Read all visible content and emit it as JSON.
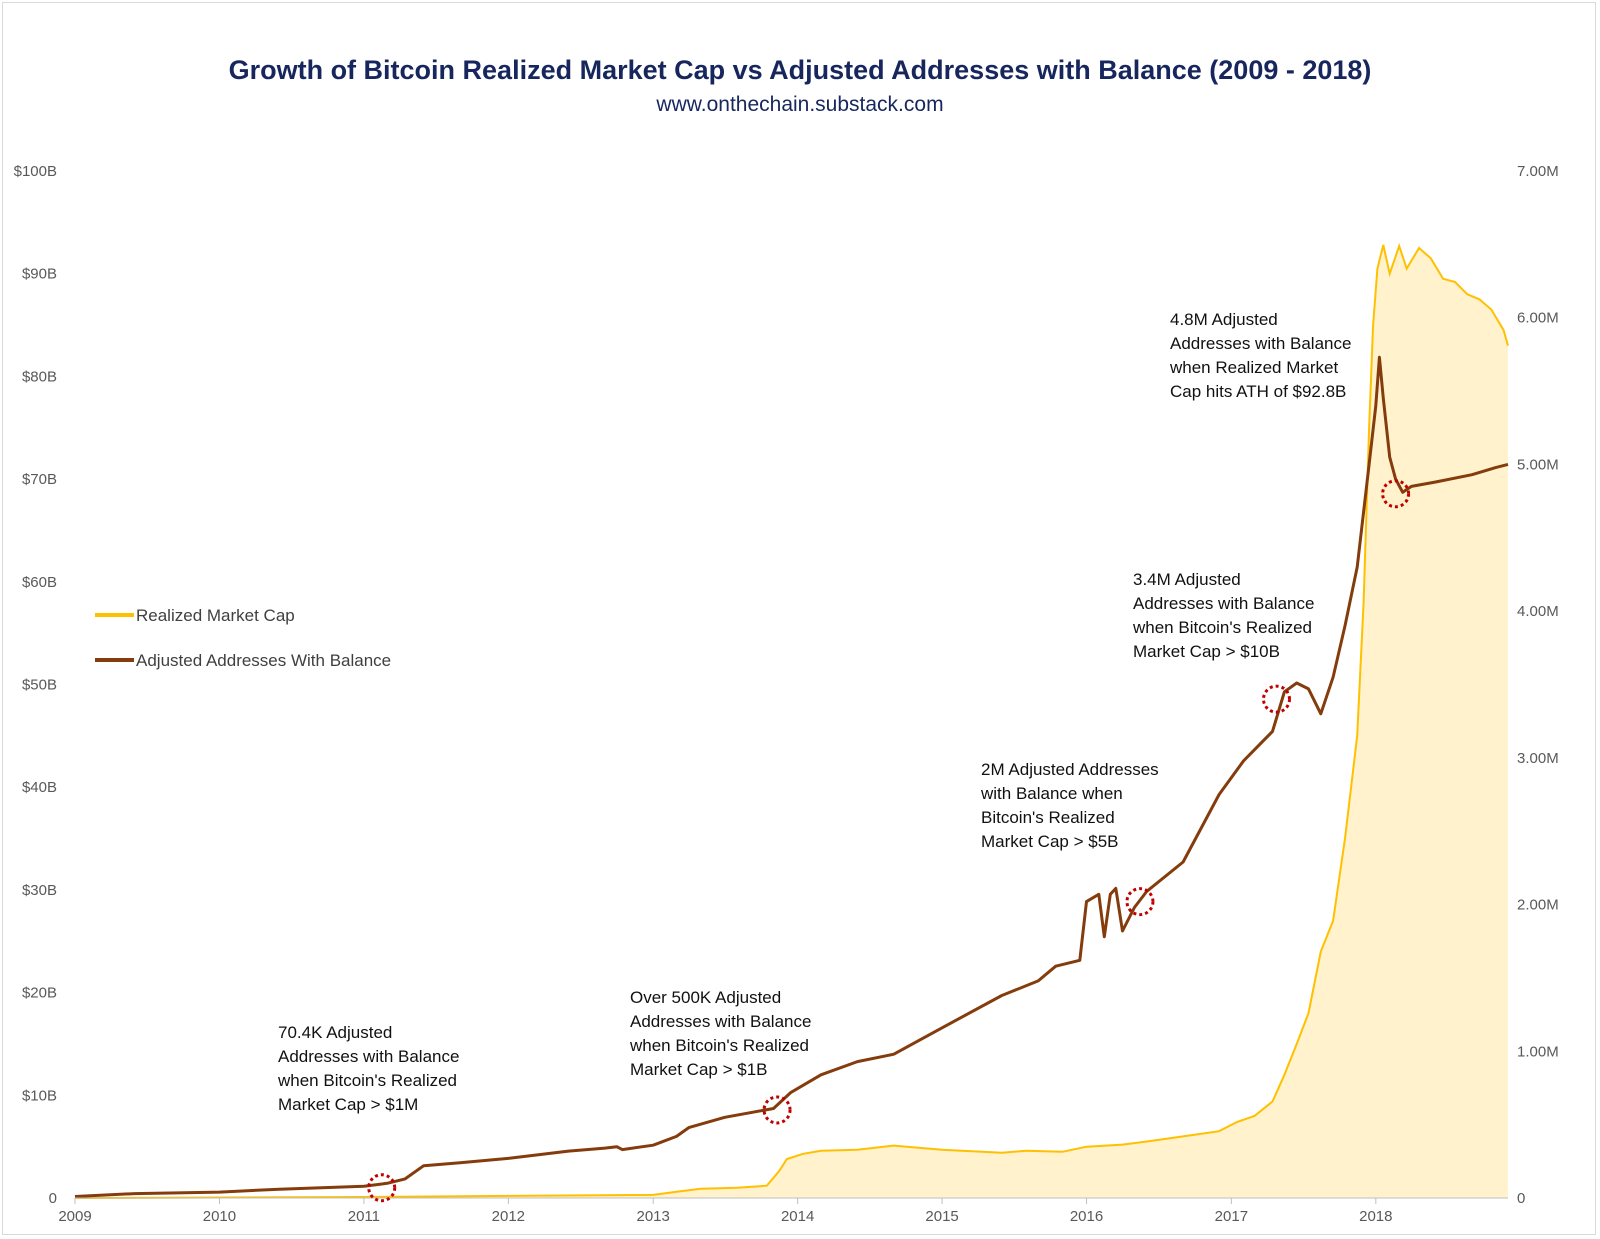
{
  "header": {
    "title": "Growth of Bitcoin Realized Market Cap vs Adjusted Addresses with Balance (2009 - 2018)",
    "subtitle": "www.onthechain.substack.com"
  },
  "colors": {
    "market_cap_line": "#ffc000",
    "market_cap_fill": "#fff2cc",
    "addresses_line": "#843c0c",
    "marker": "#c00000",
    "title": "#17275e"
  },
  "chart_data": {
    "type": "area",
    "xlim": [
      "2009-01-01",
      "2018-12-01"
    ],
    "y_left": {
      "range": [
        0,
        100
      ],
      "unit": "billion USD",
      "ticks": [
        "0",
        "$10B",
        "$20B",
        "$30B",
        "$40B",
        "$50B",
        "$60B",
        "$70B",
        "$80B",
        "$90B",
        "$100B"
      ]
    },
    "y_right": {
      "range": [
        0,
        7
      ],
      "unit": "million addresses",
      "ticks": [
        "0",
        "1.00M",
        "2.00M",
        "3.00M",
        "4.00M",
        "5.00M",
        "6.00M",
        "7.00M"
      ]
    },
    "x_ticks": [
      "2009",
      "2010",
      "2011",
      "2012",
      "2013",
      "2014",
      "2015",
      "2016",
      "2017",
      "2018"
    ],
    "legend": {
      "placement": "left-middle",
      "entries": [
        "Realized Market Cap",
        "Adjusted Addresses With Balance"
      ]
    },
    "grid": false,
    "series": [
      {
        "name": "Realized Market Cap",
        "axis": "left",
        "style": "area",
        "points": [
          [
            "2009-01-01",
            0
          ],
          [
            "2010-01-01",
            0.05
          ],
          [
            "2011-01-01",
            0.1
          ],
          [
            "2012-01-01",
            0.2
          ],
          [
            "2013-01-01",
            0.3
          ],
          [
            "2013-03-01",
            0.6
          ],
          [
            "2013-05-01",
            0.9
          ],
          [
            "2013-08-01",
            1.0
          ],
          [
            "2013-10-15",
            1.2
          ],
          [
            "2013-11-15",
            2.6
          ],
          [
            "2013-12-05",
            3.8
          ],
          [
            "2014-01-15",
            4.3
          ],
          [
            "2014-03-01",
            4.6
          ],
          [
            "2014-06-01",
            4.7
          ],
          [
            "2014-09-01",
            5.1
          ],
          [
            "2015-01-01",
            4.7
          ],
          [
            "2015-06-01",
            4.4
          ],
          [
            "2015-08-01",
            4.6
          ],
          [
            "2015-11-01",
            4.5
          ],
          [
            "2016-01-01",
            5.0
          ],
          [
            "2016-04-01",
            5.2
          ],
          [
            "2016-06-01",
            5.5
          ],
          [
            "2016-09-01",
            6.0
          ],
          [
            "2016-12-01",
            6.5
          ],
          [
            "2017-01-15",
            7.4
          ],
          [
            "2017-03-01",
            8.0
          ],
          [
            "2017-04-15",
            9.4
          ],
          [
            "2017-05-15",
            12.0
          ],
          [
            "2017-06-15",
            15.0
          ],
          [
            "2017-07-15",
            18.0
          ],
          [
            "2017-08-15",
            24.0
          ],
          [
            "2017-09-15",
            27.0
          ],
          [
            "2017-10-15",
            35.0
          ],
          [
            "2017-11-15",
            45.0
          ],
          [
            "2017-12-01",
            58.0
          ],
          [
            "2017-12-15",
            75.0
          ],
          [
            "2017-12-25",
            85.0
          ],
          [
            "2018-01-05",
            90.5
          ],
          [
            "2018-01-20",
            92.8
          ],
          [
            "2018-02-05",
            90.0
          ],
          [
            "2018-03-01",
            92.7
          ],
          [
            "2018-03-20",
            90.5
          ],
          [
            "2018-04-20",
            92.5
          ],
          [
            "2018-05-20",
            91.5
          ],
          [
            "2018-06-20",
            89.5
          ],
          [
            "2018-07-20",
            89.2
          ],
          [
            "2018-08-20",
            88.0
          ],
          [
            "2018-09-20",
            87.5
          ],
          [
            "2018-10-20",
            86.5
          ],
          [
            "2018-11-20",
            84.5
          ],
          [
            "2018-12-01",
            83.0
          ]
        ]
      },
      {
        "name": "Adjusted Addresses With Balance",
        "axis": "right",
        "style": "line",
        "points": [
          [
            "2009-01-01",
            0.01
          ],
          [
            "2009-06-01",
            0.03
          ],
          [
            "2010-01-01",
            0.04
          ],
          [
            "2010-06-01",
            0.06
          ],
          [
            "2011-01-01",
            0.08
          ],
          [
            "2011-03-01",
            0.1
          ],
          [
            "2011-04-15",
            0.13
          ],
          [
            "2011-06-01",
            0.22
          ],
          [
            "2011-09-01",
            0.24
          ],
          [
            "2012-01-01",
            0.27
          ],
          [
            "2012-06-01",
            0.32
          ],
          [
            "2012-09-01",
            0.34
          ],
          [
            "2012-10-01",
            0.35
          ],
          [
            "2012-10-15",
            0.33
          ],
          [
            "2013-01-01",
            0.36
          ],
          [
            "2013-03-01",
            0.42
          ],
          [
            "2013-04-01",
            0.48
          ],
          [
            "2013-07-01",
            0.55
          ],
          [
            "2013-11-01",
            0.61
          ],
          [
            "2013-12-15",
            0.72
          ],
          [
            "2014-03-01",
            0.84
          ],
          [
            "2014-06-01",
            0.93
          ],
          [
            "2014-09-01",
            0.98
          ],
          [
            "2015-01-01",
            1.16
          ],
          [
            "2015-06-01",
            1.38
          ],
          [
            "2015-09-01",
            1.48
          ],
          [
            "2015-10-15",
            1.58
          ],
          [
            "2015-12-15",
            1.62
          ],
          [
            "2016-01-01",
            2.02
          ],
          [
            "2016-02-01",
            2.07
          ],
          [
            "2016-02-15",
            1.78
          ],
          [
            "2016-03-01",
            2.07
          ],
          [
            "2016-03-15",
            2.11
          ],
          [
            "2016-04-01",
            1.82
          ],
          [
            "2016-05-01",
            1.98
          ],
          [
            "2016-06-01",
            2.09
          ],
          [
            "2016-09-01",
            2.29
          ],
          [
            "2016-12-01",
            2.75
          ],
          [
            "2017-02-01",
            2.98
          ],
          [
            "2017-04-15",
            3.18
          ],
          [
            "2017-05-15",
            3.45
          ],
          [
            "2017-06-15",
            3.51
          ],
          [
            "2017-07-15",
            3.47
          ],
          [
            "2017-08-15",
            3.3
          ],
          [
            "2017-09-15",
            3.55
          ],
          [
            "2017-10-15",
            3.9
          ],
          [
            "2017-11-15",
            4.3
          ],
          [
            "2017-12-15",
            5.0
          ],
          [
            "2018-01-01",
            5.4
          ],
          [
            "2018-01-10",
            5.73
          ],
          [
            "2018-01-20",
            5.45
          ],
          [
            "2018-02-05",
            5.05
          ],
          [
            "2018-02-20",
            4.9
          ],
          [
            "2018-03-10",
            4.81
          ],
          [
            "2018-04-01",
            4.85
          ],
          [
            "2018-06-01",
            4.88
          ],
          [
            "2018-09-01",
            4.93
          ],
          [
            "2018-11-01",
            4.98
          ],
          [
            "2018-12-01",
            5.0
          ]
        ]
      }
    ],
    "annotations": [
      {
        "lines": [
          "70.4K Adjusted",
          "Addresses with Balance",
          "when Bitcoin's Realized",
          "Market Cap > $1M"
        ],
        "marker_at": [
          "2011-02-15",
          0.07
        ]
      },
      {
        "lines": [
          "Over 500K Adjusted",
          "Addresses with Balance",
          "when Bitcoin's Realized",
          "Market Cap > $1B"
        ],
        "marker_at": [
          "2013-11-10",
          0.6
        ]
      },
      {
        "lines": [
          "2M Adjusted Addresses",
          "with Balance when",
          "Bitcoin's Realized",
          "Market Cap > $5B"
        ],
        "marker_at": [
          "2016-05-15",
          2.02
        ]
      },
      {
        "lines": [
          "3.4M Adjusted",
          "Addresses with Balance",
          "when Bitcoin's Realized",
          "Market Cap > $10B"
        ],
        "marker_at": [
          "2017-04-25",
          3.4
        ]
      },
      {
        "lines": [
          "4.8M Adjusted",
          "Addresses with Balance",
          "when Realized Market",
          "Cap hits ATH of $92.8B"
        ],
        "marker_at": [
          "2018-02-20",
          4.8
        ]
      }
    ]
  }
}
